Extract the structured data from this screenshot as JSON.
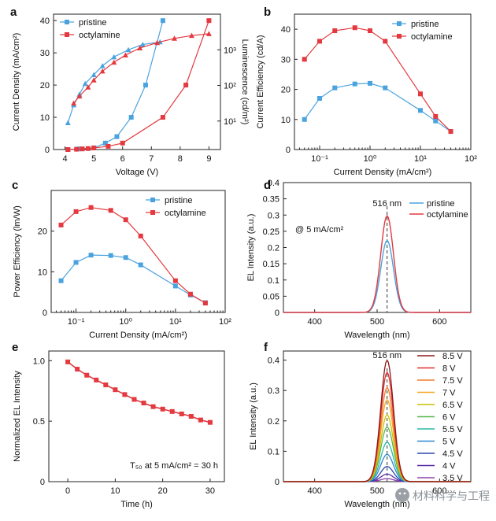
{
  "colors": {
    "pristine": "#4aa3df",
    "octylamine": "#e3393f"
  },
  "chart_data": [
    {
      "panel": "a",
      "type": "line",
      "xlabel": "Voltage (V)",
      "ylabel": "Current Density (mA/cm²)",
      "y2label": "Luminescence (cd/m²)",
      "xlim": [
        3.6,
        9.4
      ],
      "ylim": [
        0,
        42
      ],
      "y2lim_log": [
        0.2,
        4.0
      ],
      "xticks": [
        "4",
        "5",
        "6",
        "7",
        "8",
        "9"
      ],
      "yticks": [
        "0",
        "10",
        "20",
        "30",
        "40"
      ],
      "y2ticks": [
        "10¹",
        "10²",
        "10³"
      ],
      "legend": [
        "pristine",
        "octylamine"
      ],
      "series": [
        {
          "name": "pristine",
          "axis": "left",
          "x": [
            4.1,
            4.5,
            5.0,
            5.4,
            5.8,
            6.3,
            6.8,
            7.4
          ],
          "y": [
            0,
            0.2,
            0.5,
            2,
            4,
            10,
            20,
            40
          ]
        },
        {
          "name": "octylamine",
          "axis": "left",
          "x": [
            4.1,
            4.4,
            4.6,
            4.8,
            5.0,
            5.5,
            6.0,
            7.4,
            8.2,
            9.0
          ],
          "y": [
            0,
            0.1,
            0.2,
            0.3,
            0.5,
            1,
            2,
            10,
            20,
            40
          ]
        },
        {
          "name": "pristine",
          "axis": "right",
          "marker": "triangle",
          "x": [
            4.1,
            4.3,
            4.5,
            4.7,
            5.0,
            5.3,
            5.7,
            6.2,
            6.7,
            7.3
          ],
          "ylog": [
            0.95,
            1.45,
            1.75,
            2.05,
            2.3,
            2.55,
            2.8,
            3.0,
            3.15,
            3.22
          ]
        },
        {
          "name": "octylamine",
          "axis": "right",
          "marker": "triangle",
          "x": [
            4.3,
            4.5,
            4.8,
            5.0,
            5.3,
            5.7,
            6.1,
            6.6,
            7.2,
            7.8,
            8.4,
            9.0
          ],
          "ylog": [
            1.5,
            1.7,
            1.95,
            2.15,
            2.4,
            2.65,
            2.85,
            3.05,
            3.2,
            3.32,
            3.4,
            3.45
          ]
        }
      ]
    },
    {
      "panel": "b",
      "type": "line",
      "xscale": "log",
      "xlabel": "Current Density (mA/cm²)",
      "ylabel": "Current Efficiency (cd/A)",
      "xlim_log": [
        -1.5,
        2.0
      ],
      "ylim": [
        0,
        45
      ],
      "xticks": [
        "10⁻¹",
        "10⁰",
        "10¹",
        "10²"
      ],
      "yticks": [
        "0",
        "10",
        "20",
        "30",
        "40"
      ],
      "legend": [
        "pristine",
        "octylamine"
      ],
      "series": [
        {
          "name": "pristine",
          "x": [
            0.05,
            0.1,
            0.2,
            0.5,
            1,
            2,
            10,
            20,
            40
          ],
          "y": [
            10,
            17,
            20.5,
            21.8,
            22,
            20.5,
            13,
            9.5,
            6
          ]
        },
        {
          "name": "octylamine",
          "x": [
            0.05,
            0.1,
            0.2,
            0.5,
            1,
            2,
            10,
            20,
            40
          ],
          "y": [
            30,
            36,
            39.5,
            40.5,
            39.5,
            36,
            18.5,
            11,
            6
          ]
        }
      ]
    },
    {
      "panel": "c",
      "type": "line",
      "xscale": "log",
      "xlabel": "Current Density (mA/cm²)",
      "ylabel": "Power Efficiency (lm/W)",
      "xlim_log": [
        -1.5,
        2.0
      ],
      "ylim": [
        0,
        30
      ],
      "xticks": [
        "10⁻¹",
        "10⁰",
        "10¹",
        "10²"
      ],
      "yticks": [
        "0",
        "10",
        "20"
      ],
      "legend": [
        "pristine",
        "octylamine"
      ],
      "series": [
        {
          "name": "pristine",
          "x": [
            0.05,
            0.1,
            0.2,
            0.5,
            1,
            2,
            10,
            20,
            40
          ],
          "y": [
            7.8,
            12.3,
            14.1,
            14.0,
            13.5,
            11.7,
            6.5,
            4.3,
            2.4
          ]
        },
        {
          "name": "octylamine",
          "x": [
            0.05,
            0.1,
            0.2,
            0.5,
            1,
            2,
            10,
            20,
            40
          ],
          "y": [
            21.5,
            24.8,
            25.8,
            25.1,
            22.8,
            18.8,
            7.8,
            4.5,
            2.3
          ]
        }
      ]
    },
    {
      "panel": "d",
      "type": "line",
      "xlabel": "Wavelength (nm)",
      "ylabel": "EL Intensity (a.u.)",
      "xlim": [
        350,
        650
      ],
      "ylim": [
        0,
        0.4
      ],
      "xticks": [
        "400",
        "500",
        "600"
      ],
      "yticks": [
        "0",
        "0.05",
        "0.1",
        "0.15",
        "0.2",
        "0.25",
        "0.3",
        "0.35",
        "0.4"
      ],
      "annotation": "@ 5 mA/cm²",
      "peak_label": "516 nm",
      "peak": 516,
      "legend": [
        "pristine",
        "octylamine"
      ],
      "series": [
        {
          "name": "pristine",
          "peak": 516,
          "amplitude": 0.222,
          "fwhm": 24
        },
        {
          "name": "octylamine",
          "peak": 516,
          "amplitude": 0.298,
          "fwhm": 24
        }
      ]
    },
    {
      "panel": "e",
      "type": "line",
      "xlabel": "Time (h)",
      "ylabel": "Normalized EL Intensity",
      "xlim": [
        -4,
        33
      ],
      "ylim": [
        0,
        1.08
      ],
      "xticks": [
        "0",
        "10",
        "20",
        "30"
      ],
      "yticks": [
        "0",
        "0.5",
        "1.0"
      ],
      "annotation": "T₅₀ at 5 mA/cm² = 30 h",
      "series": [
        {
          "name": "octylamine",
          "x": [
            0,
            2,
            4,
            6,
            8,
            10,
            12,
            14,
            16,
            18,
            20,
            22,
            24,
            26,
            28,
            30
          ],
          "y": [
            0.99,
            0.93,
            0.88,
            0.84,
            0.8,
            0.76,
            0.72,
            0.68,
            0.65,
            0.62,
            0.6,
            0.58,
            0.56,
            0.54,
            0.51,
            0.49
          ]
        }
      ]
    },
    {
      "panel": "f",
      "type": "line",
      "xlabel": "Wavelength (nm)",
      "ylabel": "EL Intensity (a.u.)",
      "xlim": [
        350,
        650
      ],
      "ylim": [
        0,
        0.43
      ],
      "xticks": [
        "400",
        "500",
        "600"
      ],
      "yticks": [
        "0",
        "0.1",
        "0.2",
        "0.3",
        "0.4"
      ],
      "peak_label": "516 nm",
      "peak": 516,
      "legend": [
        "8.5 V",
        "8 V",
        "7.5 V",
        "7 V",
        "6.5 V",
        "6 V",
        "5.5 V",
        "5 V",
        "4.5 V",
        "4 V",
        "3.5 V"
      ],
      "series": [
        {
          "name": "8.5 V",
          "color": "#8b1a1a",
          "amplitude": 0.4
        },
        {
          "name": "8 V",
          "color": "#e03030",
          "amplitude": 0.36
        },
        {
          "name": "7.5 V",
          "color": "#f07a2a",
          "amplitude": 0.31
        },
        {
          "name": "7 V",
          "color": "#f5a623",
          "amplitude": 0.27
        },
        {
          "name": "6.5 V",
          "color": "#c8c000",
          "amplitude": 0.22
        },
        {
          "name": "6 V",
          "color": "#55b848",
          "amplitude": 0.18
        },
        {
          "name": "5.5 V",
          "color": "#2ab7a9",
          "amplitude": 0.13
        },
        {
          "name": "5 V",
          "color": "#2f86d0",
          "amplitude": 0.09
        },
        {
          "name": "4.5 V",
          "color": "#2b45b0",
          "amplitude": 0.05
        },
        {
          "name": "4 V",
          "color": "#5b2ea6",
          "amplitude": 0.025
        },
        {
          "name": "3.5 V",
          "color": "#8e44ad",
          "amplitude": 0.01
        }
      ]
    }
  ],
  "watermark": "材料科学与工程"
}
